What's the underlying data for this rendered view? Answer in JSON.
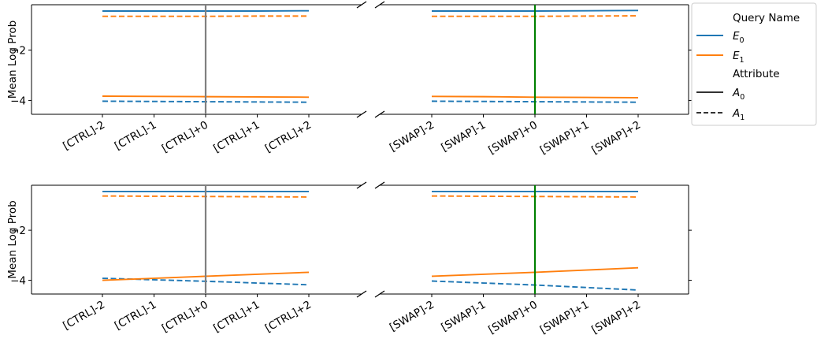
{
  "legend": {
    "title_query": "Query Name",
    "title_attribute": "Attribute",
    "entries_query": [
      {
        "base": "E",
        "sub": "0",
        "color": "#1f77b4"
      },
      {
        "base": "E",
        "sub": "1",
        "color": "#ff7f0e"
      }
    ],
    "entries_attribute": [
      {
        "base": "A",
        "sub": "0",
        "dash": "solid"
      },
      {
        "base": "A",
        "sub": "1",
        "dash": "dashed"
      }
    ]
  },
  "colors": {
    "E0": "#1f77b4",
    "E1": "#ff7f0e",
    "ctrl_vline": "#808080",
    "swap_vline": "#008000"
  },
  "chart_data": [
    {
      "type": "line",
      "row": 0,
      "ylabel": "Mean Log Prob",
      "ylim": [
        -4.55,
        -0.2
      ],
      "yticks": [
        -2,
        -4
      ],
      "ytick_labels": [
        "−2",
        "−4"
      ],
      "broken_x_axis": true,
      "panels": [
        {
          "name": "ctrl",
          "categories": [
            "[CTRL]-2",
            "[CTRL]-1",
            "[CTRL]+0",
            "[CTRL]+1",
            "[CTRL]+2"
          ],
          "vline_at": "[CTRL]+0",
          "series": [
            {
              "query": "E0",
              "attribute": "A0",
              "values": [
                -0.45,
                -0.45,
                -0.45,
                -0.45,
                -0.44
              ]
            },
            {
              "query": "E0",
              "attribute": "A1",
              "values": [
                -4.03,
                -4.04,
                -4.05,
                -4.06,
                -4.07
              ]
            },
            {
              "query": "E1",
              "attribute": "A0",
              "values": [
                -3.83,
                -3.84,
                -3.85,
                -3.86,
                -3.87
              ]
            },
            {
              "query": "E1",
              "attribute": "A1",
              "values": [
                -0.66,
                -0.66,
                -0.66,
                -0.65,
                -0.65
              ]
            }
          ]
        },
        {
          "name": "swap",
          "categories": [
            "[SWAP]-2",
            "[SWAP]-1",
            "[SWAP]+0",
            "[SWAP]+1",
            "[SWAP]+2"
          ],
          "vline_at": "[SWAP]+0",
          "series": [
            {
              "query": "E0",
              "attribute": "A0",
              "values": [
                -0.45,
                -0.45,
                -0.45,
                -0.44,
                -0.43
              ]
            },
            {
              "query": "E0",
              "attribute": "A1",
              "values": [
                -4.03,
                -4.04,
                -4.05,
                -4.06,
                -4.07
              ]
            },
            {
              "query": "E1",
              "attribute": "A0",
              "values": [
                -3.84,
                -3.85,
                -3.87,
                -3.88,
                -3.89
              ]
            },
            {
              "query": "E1",
              "attribute": "A1",
              "values": [
                -0.66,
                -0.66,
                -0.66,
                -0.65,
                -0.64
              ]
            }
          ]
        }
      ]
    },
    {
      "type": "line",
      "row": 1,
      "ylabel": "Mean Log Prob",
      "ylim": [
        -4.55,
        -0.2
      ],
      "yticks": [
        -2,
        -4
      ],
      "ytick_labels": [
        "−2",
        "−4"
      ],
      "broken_x_axis": true,
      "panels": [
        {
          "name": "ctrl",
          "categories": [
            "[CTRL]-2",
            "[CTRL]-1",
            "[CTRL]+0",
            "[CTRL]+1",
            "[CTRL]+2"
          ],
          "vline_at": "[CTRL]+0",
          "series": [
            {
              "query": "E0",
              "attribute": "A0",
              "values": [
                -0.45,
                -0.45,
                -0.45,
                -0.45,
                -0.45
              ]
            },
            {
              "query": "E0",
              "attribute": "A1",
              "values": [
                -3.92,
                -3.98,
                -4.04,
                -4.11,
                -4.18
              ]
            },
            {
              "query": "E1",
              "attribute": "A0",
              "values": [
                -4.0,
                -3.92,
                -3.84,
                -3.76,
                -3.68
              ]
            },
            {
              "query": "E1",
              "attribute": "A1",
              "values": [
                -0.63,
                -0.64,
                -0.65,
                -0.66,
                -0.67
              ]
            }
          ]
        },
        {
          "name": "swap",
          "categories": [
            "[SWAP]-2",
            "[SWAP]-1",
            "[SWAP]+0",
            "[SWAP]+1",
            "[SWAP]+2"
          ],
          "vline_at": "[SWAP]+0",
          "series": [
            {
              "query": "E0",
              "attribute": "A0",
              "values": [
                -0.45,
                -0.45,
                -0.45,
                -0.45,
                -0.45
              ]
            },
            {
              "query": "E0",
              "attribute": "A1",
              "values": [
                -4.03,
                -4.11,
                -4.19,
                -4.29,
                -4.39
              ]
            },
            {
              "query": "E1",
              "attribute": "A0",
              "values": [
                -3.84,
                -3.76,
                -3.68,
                -3.59,
                -3.5
              ]
            },
            {
              "query": "E1",
              "attribute": "A1",
              "values": [
                -0.63,
                -0.64,
                -0.65,
                -0.66,
                -0.67
              ]
            }
          ]
        }
      ]
    }
  ]
}
